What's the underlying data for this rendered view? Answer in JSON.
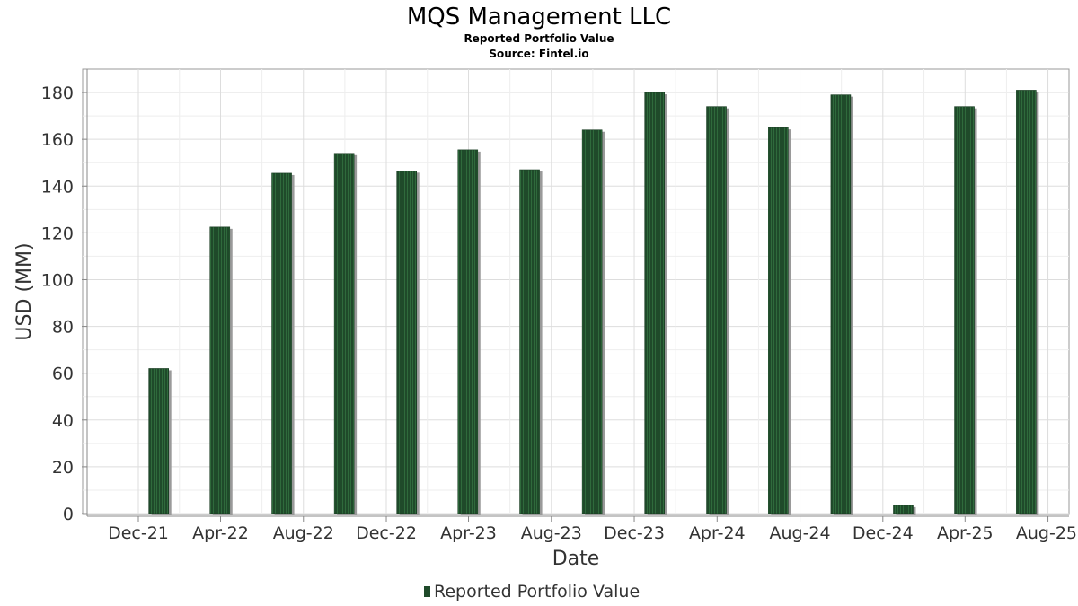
{
  "chart_data": {
    "type": "bar",
    "title": "MQS Management LLC",
    "subtitles": [
      "Reported Portfolio Value",
      "Source: Fintel.io"
    ],
    "xlabel": "Date",
    "ylabel": "USD (MM)",
    "ylim": [
      0,
      190
    ],
    "y_ticks": [
      0,
      20,
      40,
      60,
      80,
      100,
      120,
      140,
      160,
      180
    ],
    "x_range": [
      "2021-09-10",
      "2025-09-01"
    ],
    "x_tick_labels": [
      "Dec-21",
      "Apr-22",
      "Aug-22",
      "Dec-22",
      "Apr-23",
      "Aug-23",
      "Dec-23",
      "Apr-24",
      "Aug-24",
      "Dec-24",
      "Apr-25",
      "Aug-25"
    ],
    "x_tick_dates": [
      "2021-12-01",
      "2022-04-01",
      "2022-08-01",
      "2022-12-01",
      "2023-04-01",
      "2023-08-01",
      "2023-12-01",
      "2024-04-01",
      "2024-08-01",
      "2024-12-01",
      "2025-04-01",
      "2025-08-01"
    ],
    "grid": true,
    "legend_position": "bottom-center",
    "series": [
      {
        "name": "Reported Portfolio Value",
        "color": "#1f4a2a",
        "dates": [
          "2021-12-31",
          "2022-03-31",
          "2022-06-30",
          "2022-09-30",
          "2022-12-31",
          "2023-03-31",
          "2023-06-30",
          "2023-09-30",
          "2023-12-31",
          "2024-03-31",
          "2024-06-30",
          "2024-09-30",
          "2024-12-31",
          "2025-03-31",
          "2025-06-30"
        ],
        "values": [
          62,
          122.5,
          145.5,
          154,
          146.5,
          155.5,
          147,
          164,
          180,
          174,
          165,
          179,
          3.5,
          174,
          181
        ]
      }
    ]
  }
}
